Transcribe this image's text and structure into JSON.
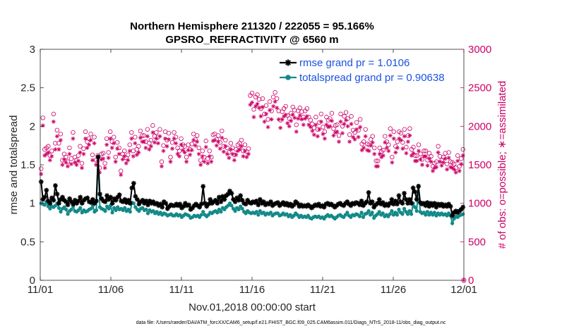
{
  "chart_data": {
    "type": "line",
    "title": "Northern Hemisphere 211320 / 222055 = 95.166%",
    "subtitle": "GPSRO_REFRACTIVITY @ 6560 m",
    "xlabel": "Nov.01,2018 00:00:00 start",
    "ylabel": "rmse and totalspread",
    "y2label": "# of obs: o=possible; ∗=assimilated",
    "footnote": "data file: /Users/raeder/DAI/ATM_forcXX/CAM6_setup/f.e21.FHIST_BGC.f09_025.CAM6assim.011/Diags_NTrS_2018-11/obs_diag_output.nc",
    "x_range": [
      0,
      30
    ],
    "x_ticks": [
      0,
      5,
      10,
      15,
      20,
      25,
      30
    ],
    "x_tick_labels": [
      "11/01",
      "11/06",
      "11/11",
      "11/16",
      "11/21",
      "11/26",
      "12/01"
    ],
    "ylim": [
      0,
      3
    ],
    "y_ticks": [
      "0",
      "0.5",
      "1",
      "1.5",
      "2",
      "2.5",
      "3"
    ],
    "y2lim": [
      0,
      3000
    ],
    "y2_ticks": [
      "0",
      "500",
      "1000",
      "1500",
      "2000",
      "2500",
      "3000"
    ],
    "legend_position": "top-right",
    "colors": {
      "rmse": "#000000",
      "spread": "#128a88",
      "obs": "#cc0066",
      "legend_text": "#1a52e0"
    },
    "series": [
      {
        "name": "rmse grand pr = 1.0106",
        "axis": "left",
        "marker": "star",
        "values": [
          1.28,
          1.05,
          1.08,
          1.17,
          1.03,
          1.0,
          1.07,
          1.04,
          1.23,
          1.12,
          1.0,
          1.05,
          1.08,
          1.04,
          1.02,
          0.98,
          1.06,
          1.02,
          0.99,
          1.04,
          1.0,
          1.03,
          1.08,
          1.0,
          1.04,
          1.06,
          1.07,
          1.02,
          1.01,
          1.05,
          1.0,
          1.03,
          1.6,
          1.12,
          1.06,
          1.03,
          1.02,
          1.1,
          1.05,
          1.08,
          1.0,
          1.06,
          1.04,
          1.08,
          1.11,
          1.03,
          1.02,
          1.05,
          1.01,
          1.04,
          1.0,
          1.2,
          1.26,
          1.09,
          1.05,
          0.99,
          1.02,
          1.04,
          1.0,
          1.03,
          0.98,
          1.03,
          1.0,
          1.02,
          0.99,
          1.0,
          0.97,
          0.99,
          0.95,
          1.02,
          1.0,
          0.93,
          0.96,
          0.98,
          0.97,
          0.97,
          0.99,
          0.97,
          0.99,
          0.94,
          0.96,
          1.0,
          0.97,
          0.98,
          0.92,
          0.94,
          0.97,
          0.99,
          0.97,
          0.95,
          0.99,
          1.22,
          1.0,
          0.96,
          0.99,
          1.05,
          1.0,
          1.02,
          1.04,
          1.0,
          1.08,
          1.02,
          1.09,
          1.05,
          1.1,
          1.12,
          1.16,
          1.13,
          1.05,
          1.02,
          1.07,
          1.04,
          1.1,
          1.04,
          1.0,
          0.99,
          1.04,
          1.01,
          1.0,
          1.02,
          1.01,
          1.03,
          0.98,
          1.05,
          1.0,
          1.02,
          0.98,
          1.0,
          0.99,
          1.02,
          0.97,
          0.99,
          1.0,
          1.01,
          0.97,
          0.99,
          1.01,
          0.98,
          1.0,
          0.97,
          0.99,
          0.96,
          0.98,
          1.02,
          1.0,
          0.96,
          0.98,
          0.96,
          0.97,
          0.96,
          0.98,
          0.96,
          0.94,
          0.96,
          0.98,
          0.97,
          0.99,
          0.96,
          0.97,
          0.95,
          0.99,
          1.0,
          0.98,
          0.99,
          0.97,
          0.95,
          0.97,
          0.99,
          1.0,
          0.98,
          0.97,
          1.0,
          1.02,
          0.99,
          0.97,
          1.0,
          0.99,
          1.01,
          1.0,
          0.98,
          1.03,
          0.97,
          1.0,
          1.02,
          1.14,
          1.0,
          1.02,
          0.95,
          0.98,
          1.0,
          1.05,
          0.99,
          1.01,
          0.97,
          0.99,
          0.97,
          1.0,
          1.05,
          0.99,
          1.03,
          0.99,
          1.1,
          1.02,
          1.0,
          1.13,
          1.05,
          1.0,
          1.05,
          1.0,
          1.2,
          1.15,
          1.05,
          1.22,
          1.01,
          0.99,
          1.0,
          0.97,
          1.01,
          0.96,
          1.0,
          0.97,
          1.0,
          0.95,
          0.99,
          0.97,
          0.99,
          0.96,
          0.98,
          0.96,
          0.99,
          0.96,
          0.84,
          0.88,
          0.9,
          0.88,
          0.9,
          0.92,
          0.95
        ]
      },
      {
        "name": "totalspread grand pr = 0.90638",
        "axis": "left",
        "marker": "dot",
        "values": [
          1.0,
          0.99,
          0.98,
          1.02,
          0.96,
          0.93,
          0.96,
          0.95,
          0.97,
          1.0,
          0.94,
          0.89,
          0.93,
          0.95,
          0.92,
          0.86,
          0.9,
          0.92,
          0.96,
          0.9,
          0.89,
          0.91,
          0.94,
          0.88,
          0.91,
          0.89,
          0.9,
          0.92,
          0.93,
          0.97,
          0.89,
          0.91,
          1.61,
          0.95,
          0.93,
          0.92,
          0.9,
          0.96,
          0.93,
          0.97,
          0.88,
          0.94,
          0.91,
          0.95,
          0.92,
          0.93,
          0.91,
          0.94,
          0.9,
          0.92,
          0.89,
          1.01,
          1.0,
          0.95,
          0.92,
          0.9,
          0.93,
          0.94,
          0.91,
          0.92,
          0.87,
          0.91,
          0.89,
          0.9,
          0.87,
          0.89,
          0.86,
          0.88,
          0.85,
          0.87,
          0.86,
          0.84,
          0.85,
          0.86,
          0.84,
          0.84,
          0.86,
          0.84,
          0.85,
          0.82,
          0.84,
          0.86,
          0.85,
          0.84,
          0.81,
          0.82,
          0.84,
          0.83,
          0.84,
          0.82,
          0.85,
          0.89,
          0.85,
          0.83,
          0.85,
          0.88,
          0.87,
          0.89,
          0.9,
          0.88,
          0.92,
          0.89,
          0.94,
          0.92,
          0.95,
          0.97,
          1.0,
          0.97,
          0.93,
          0.9,
          0.94,
          0.92,
          0.96,
          0.93,
          0.89,
          0.87,
          0.9,
          0.88,
          0.87,
          0.88,
          0.87,
          0.89,
          0.85,
          0.9,
          0.87,
          0.88,
          0.85,
          0.87,
          0.86,
          0.88,
          0.84,
          0.86,
          0.87,
          0.87,
          0.84,
          0.85,
          0.87,
          0.85,
          0.86,
          0.83,
          0.85,
          0.82,
          0.84,
          0.87,
          0.85,
          0.82,
          0.84,
          0.82,
          0.83,
          0.82,
          0.84,
          0.81,
          0.8,
          0.82,
          0.83,
          0.82,
          0.83,
          0.81,
          0.82,
          0.8,
          0.83,
          0.85,
          0.83,
          0.84,
          0.82,
          0.8,
          0.82,
          0.84,
          0.85,
          0.83,
          0.82,
          0.85,
          0.88,
          0.84,
          0.82,
          0.85,
          0.84,
          0.86,
          0.85,
          0.83,
          0.88,
          0.82,
          0.86,
          0.87,
          0.9,
          0.85,
          0.88,
          0.81,
          0.84,
          0.86,
          0.89,
          0.85,
          0.87,
          0.83,
          0.85,
          0.83,
          0.86,
          0.9,
          0.85,
          0.88,
          0.85,
          0.92,
          0.88,
          0.86,
          0.93,
          0.89,
          0.86,
          0.9,
          0.86,
          1.0,
          0.95,
          0.9,
          1.23,
          0.89,
          0.87,
          0.88,
          0.85,
          0.89,
          0.85,
          0.88,
          0.85,
          0.88,
          0.84,
          0.87,
          0.85,
          0.87,
          0.85,
          0.86,
          0.84,
          0.87,
          0.84,
          0.74,
          0.8,
          0.83,
          0.82,
          0.84,
          0.85,
          0.86
        ]
      },
      {
        "name": "possible",
        "axis": "right",
        "marker": "circle",
        "values": [
          1450,
          2110,
          1700,
          1720,
          1740,
          1620,
          1680,
          2160,
          1780,
          1950,
          1780,
          1900,
          1560,
          1640,
          1600,
          1540,
          1720,
          1580,
          1920,
          1600,
          1560,
          1620,
          1740,
          1520,
          1710,
          1930,
          1800,
          1840,
          1900,
          1630,
          1860,
          1560,
          1620,
          1460,
          1640,
          1650,
          1520,
          1840,
          1660,
          1930,
          1800,
          1860,
          1600,
          1790,
          1720,
          1420,
          1640,
          1680,
          1590,
          1630,
          1760,
          1920,
          1680,
          1860,
          1700,
          1740,
          1940,
          1880,
          1880,
          1800,
          1960,
          1780,
          1820,
          2010,
          1870,
          1920,
          1860,
          1960,
          1540,
          1750,
          1930,
          1820,
          1910,
          1600,
          1790,
          1920,
          1860,
          1720,
          1680,
          1840,
          1760,
          1740,
          1600,
          1760,
          1700,
          1770,
          1900,
          1830,
          1880,
          1720,
          1560,
          1680,
          1600,
          1810,
          1580,
          1680,
          1600,
          1890,
          1900,
          1830,
          1880,
          1790,
          1940,
          1740,
          1820,
          1720,
          1660,
          1780,
          1720,
          1630,
          1700,
          1760,
          1780,
          1820,
          1680,
          1760,
          1670,
          1710,
          2400,
          2430,
          2220,
          2380,
          2410,
          2350,
          2230,
          2360,
          2160,
          2270,
          2090,
          2320,
          2200,
          2380,
          2440,
          2360,
          2200,
          2080,
          2190,
          2230,
          2260,
          2140,
          2100,
          2170,
          2250,
          2210,
          2020,
          2200,
          2240,
          2190,
          2120,
          2200,
          2230,
          2120,
          2080,
          2030,
          1980,
          2120,
          1960,
          2050,
          2160,
          1990,
          1930,
          2120,
          2080,
          2100,
          2170,
          1970,
          2010,
          2020,
          1880,
          2160,
          2000,
          2130,
          2180,
          2100,
          1890,
          2130,
          1950,
          1920,
          2050,
          1950,
          2090,
          1770,
          1800,
          1960,
          1770,
          1760,
          1830,
          1870,
          1720,
          1550,
          1550,
          1720,
          1670,
          1690,
          1870,
          1800,
          1760,
          1970,
          1600,
          1930,
          1740,
          1800,
          1930,
          1910,
          1790,
          1960,
          1730,
          1880,
          1970,
          1700,
          1730,
          1620,
          1620,
          1760,
          1640,
          1570,
          1680,
          1680,
          1560,
          1650,
          1610,
          1480,
          1520,
          1540,
          1740,
          1610,
          1560,
          1600,
          1650,
          1510,
          1660,
          1540,
          1530,
          1510,
          1460,
          1620,
          1480,
          1580,
          1700
        ]
      },
      {
        "name": "assimilated",
        "axis": "right",
        "marker": "asterisk",
        "values": [
          1380,
          2010,
          1620,
          1640,
          1660,
          1560,
          1610,
          2060,
          1700,
          1870,
          1700,
          1820,
          1500,
          1570,
          1530,
          1480,
          1640,
          1510,
          1840,
          1530,
          1500,
          1550,
          1660,
          1460,
          1640,
          1840,
          1720,
          1760,
          1820,
          1560,
          1780,
          1500,
          1550,
          1400,
          1570,
          1580,
          1460,
          1760,
          1590,
          1840,
          1720,
          1780,
          1540,
          1710,
          1640,
          1370,
          1570,
          1610,
          1520,
          1560,
          1680,
          1840,
          1610,
          1780,
          1630,
          1660,
          1850,
          1800,
          1800,
          1720,
          1870,
          1700,
          1740,
          1920,
          1790,
          1840,
          1780,
          1870,
          1480,
          1680,
          1840,
          1740,
          1830,
          1540,
          1710,
          1840,
          1780,
          1640,
          1610,
          1760,
          1690,
          1660,
          1540,
          1690,
          1630,
          1690,
          1820,
          1750,
          1800,
          1640,
          1500,
          1610,
          1540,
          1730,
          1520,
          1610,
          1540,
          1810,
          1820,
          1750,
          1800,
          1710,
          1850,
          1670,
          1740,
          1640,
          1590,
          1700,
          1640,
          1560,
          1630,
          1680,
          1700,
          1740,
          1610,
          1680,
          1600,
          1640,
          2280,
          2310,
          2120,
          2260,
          2290,
          2240,
          2130,
          2250,
          2060,
          2160,
          1990,
          2210,
          2090,
          2260,
          2320,
          2240,
          2090,
          1980,
          2090,
          2130,
          2150,
          2040,
          2000,
          2070,
          2150,
          2110,
          1930,
          2100,
          2140,
          2090,
          2020,
          2100,
          2130,
          2020,
          1990,
          1940,
          1890,
          2020,
          1870,
          1960,
          2060,
          1900,
          1840,
          2020,
          1990,
          2000,
          2070,
          1880,
          1920,
          1930,
          1800,
          2060,
          1910,
          2030,
          2080,
          2000,
          1800,
          2030,
          1860,
          1830,
          1960,
          1860,
          1990,
          1690,
          1720,
          1870,
          1690,
          1680,
          1750,
          1790,
          1640,
          1480,
          1480,
          1640,
          1600,
          1620,
          1790,
          1720,
          1680,
          1880,
          1530,
          1840,
          1660,
          1720,
          1840,
          1820,
          1710,
          1870,
          1650,
          1800,
          1880,
          1620,
          1650,
          1550,
          1550,
          1680,
          1570,
          1500,
          1610,
          1610,
          1490,
          1580,
          1540,
          1420,
          1460,
          1470,
          1660,
          1540,
          1490,
          1530,
          1580,
          1440,
          1590,
          1470,
          1460,
          1440,
          1400,
          1550,
          1420,
          1510,
          1620
        ]
      }
    ],
    "end_markers": {
      "x": 30,
      "possible_value": 0,
      "assimilated_value": 0
    }
  }
}
